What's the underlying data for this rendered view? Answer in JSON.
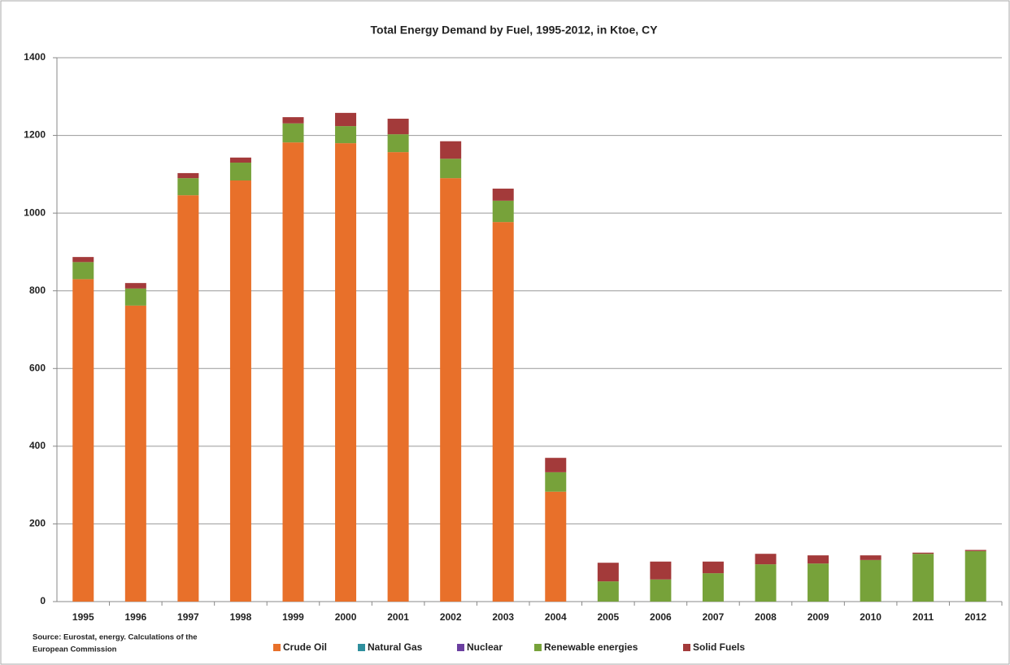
{
  "chart_data": {
    "type": "stacked_bar",
    "title": "Total Energy Demand by Fuel, 1995-2012, in Ktoe, CY",
    "source": [
      "Source: Eurostat, energy. Calculations of the",
      "European Commission"
    ],
    "categories": [
      "1995",
      "1996",
      "1997",
      "1998",
      "1999",
      "2000",
      "2001",
      "2002",
      "2003",
      "2004",
      "2005",
      "2006",
      "2007",
      "2008",
      "2009",
      "2010",
      "2011",
      "2012"
    ],
    "series": [
      {
        "name": "Crude Oil",
        "color": "#e8702a",
        "values": [
          830,
          762,
          1046,
          1084,
          1182,
          1180,
          1157,
          1090,
          977,
          283,
          0,
          0,
          0,
          0,
          0,
          0,
          0,
          0
        ]
      },
      {
        "name": "Natural Gas",
        "color": "#2f8f9d",
        "values": [
          0,
          0,
          0,
          0,
          0,
          0,
          0,
          0,
          0,
          0,
          0,
          0,
          0,
          0,
          0,
          0,
          0,
          0
        ]
      },
      {
        "name": "Nuclear",
        "color": "#6b3fa0",
        "values": [
          0,
          0,
          0,
          0,
          0,
          0,
          0,
          0,
          0,
          0,
          0,
          0,
          0,
          0,
          0,
          0,
          0,
          0
        ]
      },
      {
        "name": "Renewable energies",
        "color": "#77a23a",
        "values": [
          44,
          44,
          44,
          46,
          49,
          44,
          46,
          50,
          55,
          50,
          52,
          57,
          73,
          96,
          98,
          107,
          123,
          130
        ]
      },
      {
        "name": "Solid Fuels",
        "color": "#a33a3a",
        "values": [
          13,
          14,
          13,
          13,
          16,
          34,
          40,
          45,
          31,
          37,
          48,
          46,
          30,
          27,
          21,
          12,
          3,
          3
        ]
      }
    ],
    "ylim": [
      0,
      1400
    ],
    "yticks": [
      0,
      200,
      400,
      600,
      800,
      1000,
      1200,
      1400
    ],
    "grid": true,
    "legend": "bottom"
  }
}
